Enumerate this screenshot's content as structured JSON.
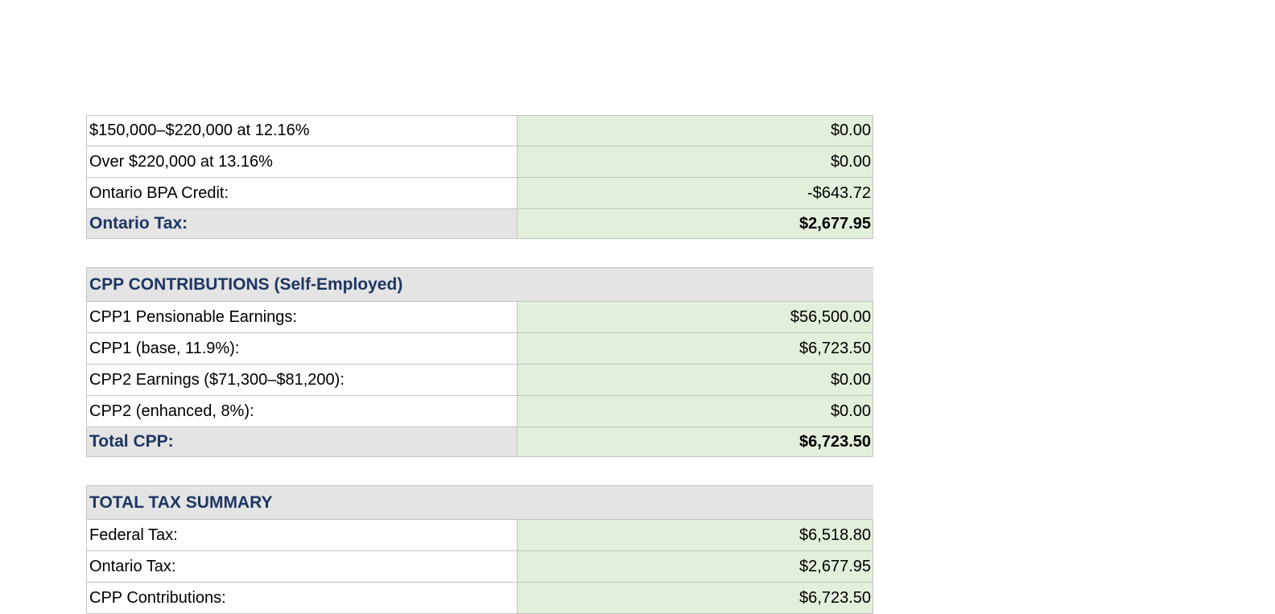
{
  "ontario": {
    "rows": [
      {
        "label": "$150,000–$220,000 at 12.16%",
        "value": "$0.00"
      },
      {
        "label": "Over $220,000 at 13.16%",
        "value": "$0.00"
      },
      {
        "label": "Ontario BPA Credit:",
        "value": "-$643.72"
      }
    ],
    "total": {
      "label": "Ontario Tax:",
      "value": "$2,677.95"
    }
  },
  "cpp": {
    "header": "CPP CONTRIBUTIONS (Self-Employed)",
    "rows": [
      {
        "label": "CPP1 Pensionable Earnings:",
        "value": "$56,500.00"
      },
      {
        "label": "CPP1 (base, 11.9%):",
        "value": "$6,723.50"
      },
      {
        "label": "CPP2 Earnings ($71,300–$81,200):",
        "value": "$0.00"
      },
      {
        "label": "CPP2 (enhanced, 8%):",
        "value": "$0.00"
      }
    ],
    "total": {
      "label": "Total CPP:",
      "value": "$6,723.50"
    }
  },
  "summary": {
    "header": "TOTAL TAX SUMMARY",
    "rows": [
      {
        "label": "Federal Tax:",
        "value": "$6,518.80"
      },
      {
        "label": "Ontario Tax:",
        "value": "$2,677.95"
      },
      {
        "label": "CPP Contributions:",
        "value": "$6,723.50"
      }
    ]
  },
  "colors": {
    "value_fill": "#e2efdb",
    "header_fill": "#e4e4e4",
    "header_text": "#1d3663",
    "grid": "#c3c3c3"
  }
}
